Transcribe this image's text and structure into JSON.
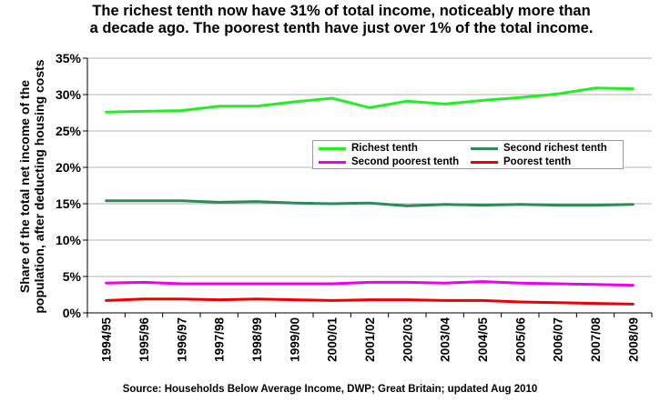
{
  "chart_data": {
    "type": "line",
    "title": "The richest tenth now have 31% of total income, noticeably more than a decade ago.  The poorest tenth have just over 1% of the total income.",
    "ylabel": "Share of the total net income of the population, after deducting housing costs",
    "xlabel": "",
    "ylim": [
      0,
      35
    ],
    "yticks": [
      "0%",
      "5%",
      "10%",
      "15%",
      "20%",
      "25%",
      "30%",
      "35%"
    ],
    "grid": true,
    "legend_position": "center",
    "categories": [
      "1994/95",
      "1995/96",
      "1996/97",
      "1997/98",
      "1998/99",
      "1999/00",
      "2000/01",
      "2001/02",
      "2002/03",
      "2003/04",
      "2004/05",
      "2005/06",
      "2006/07",
      "2007/08",
      "2008/09"
    ],
    "series": [
      {
        "name": "Richest tenth",
        "color": "#22ee22",
        "values": [
          27.6,
          27.7,
          27.8,
          28.4,
          28.4,
          29.0,
          29.5,
          28.2,
          29.1,
          28.7,
          29.2,
          29.6,
          30.1,
          30.9,
          30.8
        ]
      },
      {
        "name": "Second richest tenth",
        "color": "#2e8b57",
        "values": [
          15.4,
          15.4,
          15.4,
          15.2,
          15.3,
          15.1,
          15.0,
          15.1,
          14.7,
          14.9,
          14.8,
          14.9,
          14.8,
          14.8,
          14.9
        ]
      },
      {
        "name": "Second poorest tenth",
        "color": "#ee00ee",
        "values": [
          4.1,
          4.2,
          4.0,
          4.0,
          4.0,
          4.0,
          4.0,
          4.2,
          4.2,
          4.1,
          4.3,
          4.1,
          4.0,
          3.9,
          3.8
        ]
      },
      {
        "name": "Poorest tenth",
        "color": "#ee0000",
        "values": [
          1.7,
          1.9,
          1.9,
          1.8,
          1.9,
          1.8,
          1.7,
          1.8,
          1.8,
          1.7,
          1.7,
          1.5,
          1.4,
          1.3,
          1.2
        ]
      }
    ],
    "source": "Source: Households Below Average Income, DWP; Great Britain; updated Aug 2010"
  }
}
